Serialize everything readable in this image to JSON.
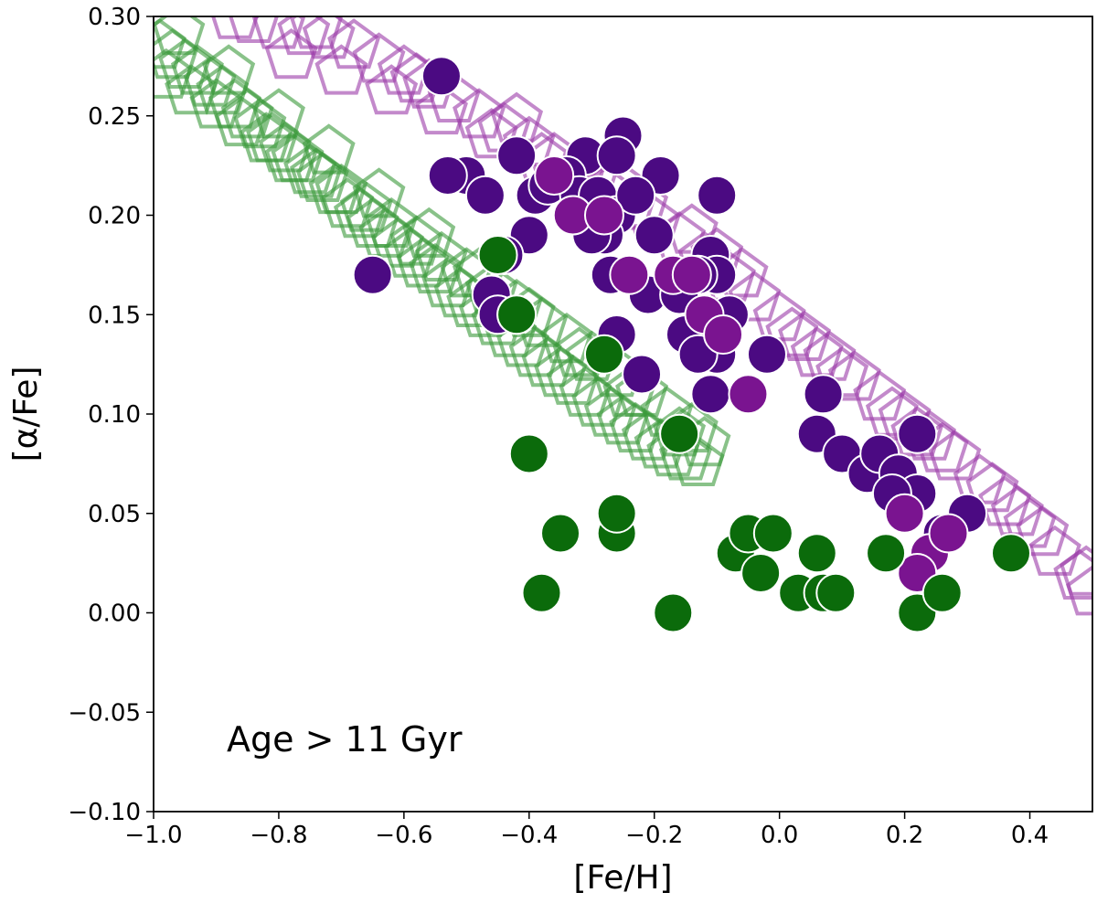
{
  "chart_data": {
    "type": "scatter",
    "xlabel": "[Fe/H]",
    "ylabel": "[α/Fe]",
    "xlim": [
      -1.0,
      0.5
    ],
    "ylim": [
      -0.1,
      0.3
    ],
    "xticks": [
      -1.0,
      -0.8,
      -0.6,
      -0.4,
      -0.2,
      0.0,
      0.2,
      0.4
    ],
    "yticks": [
      -0.1,
      -0.05,
      0.0,
      0.05,
      0.1,
      0.15,
      0.2,
      0.25,
      0.3
    ],
    "xtick_labels": [
      "−1.0",
      "−0.8",
      "−0.6",
      "−0.4",
      "−0.2",
      "0.0",
      "0.2",
      "0.4"
    ],
    "ytick_labels": [
      "−0.10",
      "−0.05",
      "0.00",
      "0.05",
      "0.10",
      "0.15",
      "0.20",
      "0.25",
      "0.30"
    ],
    "annotation": "Age > 11 Gyr",
    "grid": false,
    "colors": {
      "green_outline": "#3a9a3a",
      "purple_outline": "#9b3aa8",
      "green_filled": "#0b6b0b",
      "purple_filled": "#4b0a82",
      "purple_filled_alt": "#7a1490"
    },
    "series": [
      {
        "marker": "pentagon-outline",
        "color": "#3a9a3a",
        "x": [
          -0.99,
          -0.97,
          -0.95,
          -0.93,
          -0.91,
          -0.89,
          -0.87,
          -0.85,
          -0.83,
          -0.81,
          -0.79,
          -0.77,
          -0.75,
          -0.73,
          -0.71,
          -0.69,
          -0.67,
          -0.65,
          -0.63,
          -0.61,
          -0.59,
          -0.57,
          -0.55,
          -0.53,
          -0.51,
          -0.49,
          -0.47,
          -0.45,
          -0.43,
          -0.41,
          -0.39,
          -0.37,
          -0.35,
          -0.33,
          -0.31,
          -0.29,
          -0.27,
          -0.25,
          -0.23,
          -0.21,
          -0.19,
          -0.17,
          -0.15,
          -0.13,
          -0.98,
          -0.94,
          -0.9,
          -0.86,
          -0.82,
          -0.78,
          -0.74,
          -0.7,
          -0.66,
          -0.62,
          -0.58,
          -0.54,
          -0.5,
          -0.46,
          -0.42,
          -0.38,
          -0.34,
          -0.3,
          -0.26,
          -0.22,
          -0.18,
          -0.14,
          -0.12,
          -0.96,
          -0.88,
          -0.8,
          -0.72,
          -0.64,
          -0.56,
          -0.48,
          -0.4,
          -0.32,
          -0.24,
          -0.16
        ],
        "y": [
          0.285,
          0.28,
          0.275,
          0.272,
          0.266,
          0.262,
          0.255,
          0.25,
          0.245,
          0.238,
          0.233,
          0.228,
          0.222,
          0.218,
          0.212,
          0.205,
          0.2,
          0.195,
          0.19,
          0.185,
          0.18,
          0.175,
          0.172,
          0.165,
          0.16,
          0.155,
          0.15,
          0.146,
          0.14,
          0.135,
          0.13,
          0.125,
          0.12,
          0.116,
          0.11,
          0.105,
          0.1,
          0.096,
          0.092,
          0.088,
          0.084,
          0.08,
          0.078,
          0.075,
          0.27,
          0.262,
          0.255,
          0.246,
          0.238,
          0.228,
          0.22,
          0.212,
          0.203,
          0.195,
          0.186,
          0.178,
          0.17,
          0.162,
          0.154,
          0.145,
          0.137,
          0.128,
          0.12,
          0.11,
          0.1,
          0.092,
          0.085,
          0.292,
          0.272,
          0.25,
          0.232,
          0.21,
          0.19,
          0.17,
          0.15,
          0.13,
          0.11,
          0.09
        ]
      },
      {
        "marker": "pentagon-outline",
        "color": "#9b3aa8",
        "x": [
          -0.87,
          -0.84,
          -0.8,
          -0.76,
          -0.72,
          -0.68,
          -0.64,
          -0.6,
          -0.56,
          -0.52,
          -0.48,
          -0.44,
          -0.4,
          -0.36,
          -0.32,
          -0.28,
          -0.24,
          -0.2,
          -0.16,
          -0.12,
          -0.08,
          -0.04,
          0.0,
          0.04,
          0.08,
          0.12,
          0.16,
          0.2,
          0.24,
          0.28,
          0.32,
          0.36,
          0.4,
          0.44,
          0.48,
          0.5,
          -0.78,
          -0.7,
          -0.62,
          -0.54,
          -0.46,
          -0.38,
          -0.3,
          -0.22,
          -0.14,
          -0.06,
          0.02,
          0.1,
          0.18,
          0.26,
          0.34,
          0.42,
          0.49,
          -0.74,
          -0.58,
          -0.42,
          -0.26,
          -0.1,
          0.06,
          0.22,
          0.38
        ],
        "y": [
          0.3,
          0.298,
          0.295,
          0.292,
          0.29,
          0.285,
          0.278,
          0.272,
          0.265,
          0.258,
          0.25,
          0.243,
          0.236,
          0.228,
          0.22,
          0.212,
          0.204,
          0.196,
          0.188,
          0.178,
          0.168,
          0.158,
          0.148,
          0.138,
          0.128,
          0.118,
          0.108,
          0.098,
          0.088,
          0.078,
          0.066,
          0.055,
          0.044,
          0.03,
          0.018,
          0.01,
          0.28,
          0.272,
          0.262,
          0.252,
          0.24,
          0.228,
          0.218,
          0.205,
          0.192,
          0.17,
          0.14,
          0.12,
          0.1,
          0.082,
          0.062,
          0.04,
          0.02,
          0.295,
          0.268,
          0.248,
          0.215,
          0.18,
          0.13,
          0.09,
          0.05
        ]
      },
      {
        "marker": "circle-filled",
        "color": "#4b0a82",
        "x": [
          -0.54,
          -0.65,
          -0.25,
          -0.31,
          -0.42,
          -0.39,
          -0.5,
          -0.53,
          -0.47,
          -0.37,
          -0.34,
          -0.32,
          -0.29,
          -0.26,
          -0.19,
          -0.1,
          -0.26,
          -0.23,
          -0.2,
          -0.28,
          -0.27,
          -0.3,
          -0.33,
          -0.4,
          -0.44,
          -0.46,
          -0.45,
          -0.42,
          -0.26,
          -0.21,
          -0.14,
          -0.11,
          -0.1,
          -0.13,
          -0.16,
          -0.12,
          -0.08,
          -0.1,
          -0.15,
          -0.13,
          -0.22,
          -0.11,
          -0.02,
          0.07,
          0.06,
          0.1,
          0.14,
          0.16,
          0.19,
          0.22,
          0.22,
          0.26,
          0.3,
          0.18
        ],
        "y": [
          0.27,
          0.17,
          0.24,
          0.23,
          0.23,
          0.21,
          0.22,
          0.22,
          0.21,
          0.215,
          0.22,
          0.21,
          0.21,
          0.23,
          0.22,
          0.21,
          0.2,
          0.21,
          0.19,
          0.19,
          0.17,
          0.19,
          0.2,
          0.19,
          0.18,
          0.16,
          0.15,
          0.15,
          0.14,
          0.16,
          0.17,
          0.18,
          0.17,
          0.17,
          0.16,
          0.14,
          0.15,
          0.13,
          0.14,
          0.13,
          0.12,
          0.11,
          0.13,
          0.11,
          0.09,
          0.08,
          0.07,
          0.08,
          0.07,
          0.09,
          0.06,
          0.04,
          0.05,
          0.06
        ]
      },
      {
        "marker": "circle-filled",
        "color": "#7a1490",
        "x": [
          -0.36,
          -0.33,
          -0.28,
          -0.24,
          -0.17,
          -0.14,
          -0.12,
          -0.09,
          -0.05,
          0.2,
          0.24,
          0.27,
          0.22,
          0.17
        ],
        "y": [
          0.22,
          0.2,
          0.2,
          0.17,
          0.17,
          0.17,
          0.15,
          0.14,
          0.11,
          0.05,
          0.03,
          0.04,
          0.02,
          0.03
        ]
      },
      {
        "marker": "circle-filled",
        "color": "#0b6b0b",
        "x": [
          -0.4,
          -0.35,
          -0.38,
          -0.26,
          -0.26,
          -0.17,
          -0.16,
          -0.07,
          -0.05,
          -0.03,
          -0.01,
          0.03,
          0.06,
          0.07,
          0.09,
          0.17,
          0.22,
          0.26,
          0.37,
          -0.45,
          -0.42,
          -0.28
        ],
        "y": [
          0.08,
          0.04,
          0.01,
          0.04,
          0.05,
          0.0,
          0.09,
          0.03,
          0.04,
          0.02,
          0.04,
          0.01,
          0.03,
          0.01,
          0.01,
          0.03,
          0.0,
          0.01,
          0.03,
          0.18,
          0.15,
          0.13
        ]
      }
    ]
  }
}
